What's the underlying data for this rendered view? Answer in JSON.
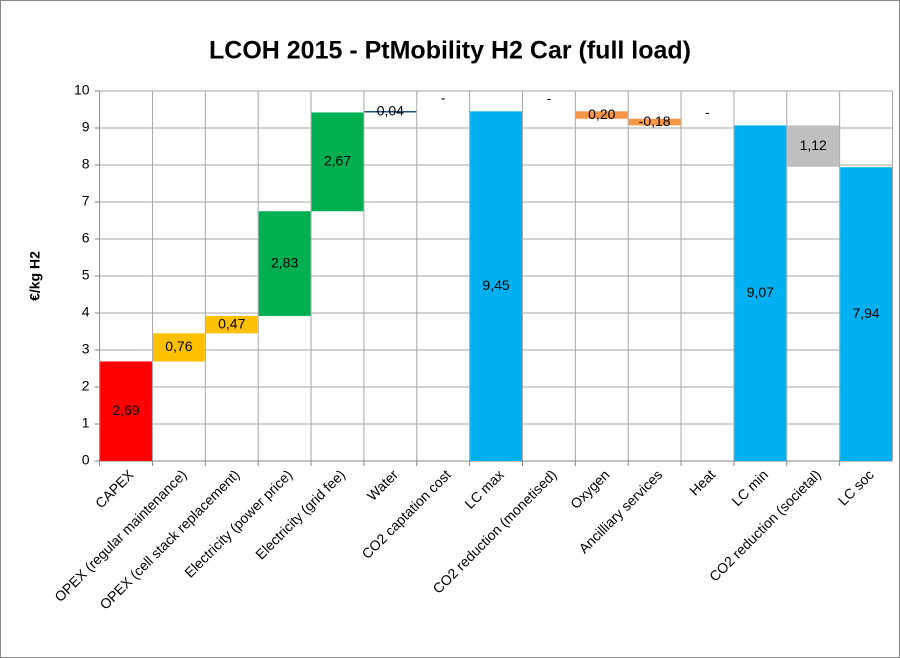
{
  "chart_data": {
    "type": "waterfall",
    "title": "LCOH 2015 - PtMobility H2 Car (full load)",
    "y_label": "€/kg H2",
    "categories": [
      "CAPEX",
      "OPEX (regular maintenance)",
      "OPEX (cell stack replacement)",
      "Electricity (power price)",
      "Electricity (grid fee)",
      "Water",
      "CO2 captation cost",
      "LC max",
      "CO2 reduction (monetised)",
      "Oxygen",
      "Ancilliary services",
      "Heat",
      "LC min",
      "CO2 reduction (societal)",
      "LC soc"
    ],
    "values": [
      2.69,
      0.76,
      0.47,
      2.83,
      2.67,
      0.04,
      0,
      9.45,
      0,
      -0.2,
      -0.18,
      0,
      9.07,
      -1.12,
      7.94
    ],
    "value_labels": [
      "2,69",
      "0,76",
      "0,47",
      "2,83",
      "2,67",
      "0,04",
      "-",
      "9,45",
      "-",
      "0,20",
      "-0,18",
      "-",
      "9,07",
      "1,12",
      "7,94"
    ],
    "is_total": [
      false,
      false,
      false,
      false,
      false,
      false,
      false,
      true,
      false,
      false,
      false,
      false,
      true,
      false,
      true
    ],
    "colors": [
      "#ff0000",
      "#ffc000",
      "#ffc000",
      "#00b050",
      "#00b050",
      "#1f4e79",
      "#1f4e79",
      "#00b0f0",
      "#92d050",
      "#f79646",
      "#f79646",
      "#f79646",
      "#00b0f0",
      "#bfbfbf",
      "#00b0f0"
    ],
    "ylim": [
      0,
      10
    ],
    "yticks": [
      0,
      1,
      2,
      3,
      4,
      5,
      6,
      7,
      8,
      9,
      10
    ],
    "grid": true
  }
}
